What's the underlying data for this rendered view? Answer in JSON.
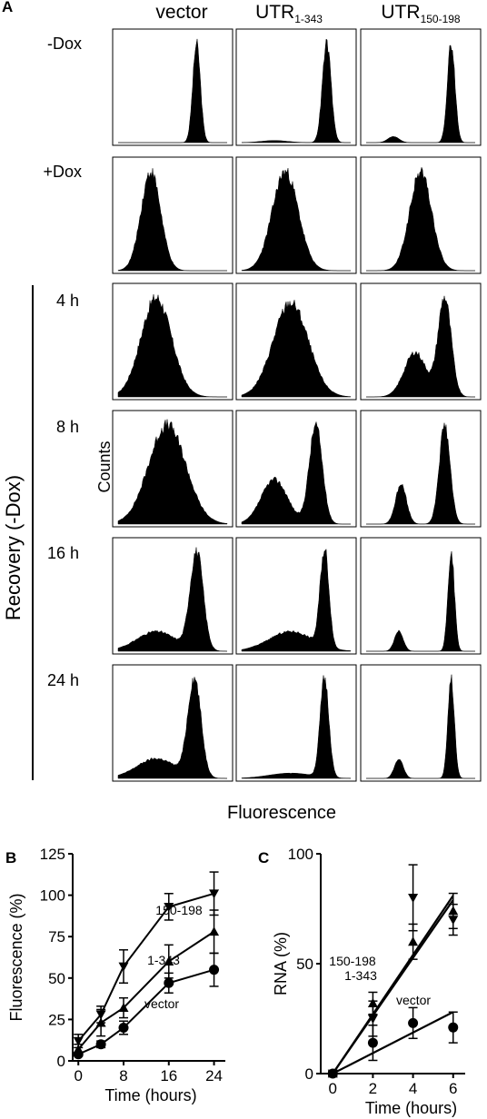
{
  "panel_a": {
    "letter": "A",
    "columns": [
      {
        "base": "vector",
        "sub": ""
      },
      {
        "base": "UTR",
        "sub": "1-343"
      },
      {
        "base": "UTR",
        "sub": "150-198"
      }
    ],
    "rows": [
      "-Dox",
      "+Dox",
      "4 h",
      "8 h",
      "16 h",
      "24 h"
    ],
    "group_label": "Recovery (-Dox)",
    "ylabel": "Counts",
    "xlabel": "Fluorescence"
  },
  "chart_data": [
    {
      "type": "line",
      "panel": "B",
      "xlabel": "Time (hours)",
      "ylabel": "Fluorescence (%)",
      "xlim": [
        -1,
        26
      ],
      "ylim": [
        0,
        125
      ],
      "xticks": [
        0,
        8,
        16,
        24
      ],
      "xtick_labels": [
        "0",
        "8",
        "16",
        "24"
      ],
      "yticks": [
        0,
        25,
        50,
        75,
        100,
        125
      ],
      "ytick_labels": [
        "0",
        "25",
        "50",
        "75",
        "100",
        "125"
      ],
      "x": [
        0,
        4,
        8,
        16,
        24
      ],
      "series": [
        {
          "name": "150-198",
          "values": [
            12,
            28,
            57,
            93,
            101
          ],
          "errors": [
            4,
            5,
            10,
            8,
            13
          ],
          "marker": "triangle-down"
        },
        {
          "name": "1-343",
          "values": [
            7,
            23,
            32,
            60,
            78
          ],
          "errors": [
            3,
            8,
            6,
            10,
            13
          ],
          "marker": "triangle-up"
        },
        {
          "name": "vector",
          "values": [
            4,
            10,
            20,
            47,
            55
          ],
          "errors": [
            1,
            2,
            4,
            6,
            10
          ],
          "marker": "circle"
        }
      ]
    },
    {
      "type": "scatter",
      "panel": "C",
      "xlabel": "Time (hours)",
      "ylabel": "RNA (%)",
      "xlim": [
        -0.6,
        6.6
      ],
      "ylim": [
        0,
        100
      ],
      "xticks": [
        0,
        2,
        4,
        6
      ],
      "xtick_labels": [
        "0",
        "2",
        "4",
        "6"
      ],
      "yticks": [
        0,
        50,
        100
      ],
      "ytick_labels": [
        "0",
        "50",
        "100"
      ],
      "x": [
        0,
        2,
        4,
        6
      ],
      "series": [
        {
          "name": "150-198",
          "values": [
            0,
            25,
            80,
            70
          ],
          "errors": [
            1,
            8,
            15,
            7
          ],
          "marker": "triangle-down",
          "fit": [
            0,
            81
          ]
        },
        {
          "name": "1-343",
          "values": [
            0,
            32,
            60,
            74
          ],
          "errors": [
            1,
            5,
            8,
            8
          ],
          "marker": "triangle-up",
          "fit": [
            0,
            79
          ]
        },
        {
          "name": "vector",
          "values": [
            0,
            14,
            23,
            21
          ],
          "errors": [
            1,
            8,
            7,
            7
          ],
          "marker": "circle",
          "fit": [
            0,
            28
          ]
        }
      ]
    }
  ]
}
